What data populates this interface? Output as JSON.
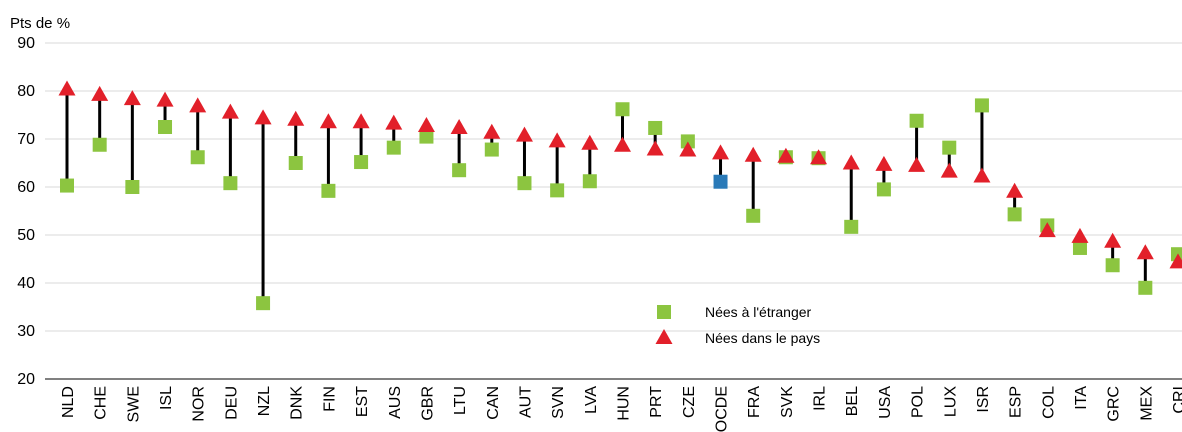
{
  "chart_data": {
    "type": "dot-range",
    "y_axis_label": "Pts de %",
    "categories": [
      "NLD",
      "CHE",
      "SWE",
      "ISL",
      "NOR",
      "DEU",
      "NZL",
      "DNK",
      "FIN",
      "EST",
      "AUS",
      "GBR",
      "LTU",
      "CAN",
      "AUT",
      "SVN",
      "LVA",
      "HUN",
      "PRT",
      "CZE",
      "OCDE",
      "FRA",
      "SVK",
      "IRL",
      "BEL",
      "USA",
      "POL",
      "LUX",
      "ISR",
      "ESP",
      "COL",
      "ITA",
      "GRC",
      "MEX",
      "CRI"
    ],
    "series": [
      {
        "name": "Nées à l'étranger",
        "marker": "square",
        "color": "#8cc540",
        "values": [
          60.3,
          68.8,
          60,
          72.5,
          66.2,
          60.8,
          35.8,
          65,
          59.2,
          65.2,
          68.2,
          70.5,
          63.5,
          67.8,
          60.8,
          59.3,
          61.2,
          76.2,
          72.3,
          69.5,
          61.1,
          54,
          66.2,
          66,
          51.7,
          59.5,
          73.8,
          68.2,
          77,
          54.3,
          52,
          47.3,
          43.7,
          39,
          46
        ]
      },
      {
        "name": "Nées dans le pays",
        "marker": "triangle",
        "color": "#e2202a",
        "values": [
          80.3,
          79.2,
          78.3,
          78,
          76.8,
          75.5,
          74.3,
          74,
          73.5,
          73.5,
          73.2,
          72.7,
          72.3,
          71.3,
          70.7,
          69.5,
          69,
          68.6,
          67.8,
          67.6,
          67,
          66.5,
          66.3,
          66,
          64.9,
          64.6,
          64.4,
          63.2,
          62.2,
          59,
          50.8,
          49.6,
          48.6,
          46.2,
          44.3
        ]
      }
    ],
    "highlight": {
      "category": "OCDE",
      "color": "#2a7ab8"
    },
    "ylim": [
      20,
      90
    ],
    "yticks": [
      20,
      30,
      40,
      50,
      60,
      70,
      80,
      90
    ],
    "grid": true
  }
}
